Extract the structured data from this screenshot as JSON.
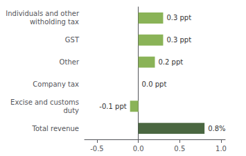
{
  "chart_data": {
    "type": "bar",
    "orientation": "horizontal",
    "categories": [
      "Total revenue",
      "Excise and customs\nduty",
      "Company tax",
      "Other",
      "GST",
      "Individuals and other\nwitholding tax"
    ],
    "values": [
      0.8,
      -0.1,
      0.0,
      0.2,
      0.3,
      0.3
    ],
    "value_labels": [
      "0.8%",
      "-0.1 ppt",
      "0.0 ppt",
      "0.2 ppt",
      "0.3 ppt",
      "0.3 ppt"
    ],
    "colors": [
      "#4a6741",
      "#8ab357",
      "#8ab357",
      "#8ab357",
      "#8ab357",
      "#8ab357"
    ],
    "xlim": [
      -0.65,
      1.05
    ],
    "xticks": [
      -0.5,
      {
        "value": 0.0,
        "label": "0.0"
      },
      0.5,
      {
        "value": 1.0,
        "label": "1.0"
      }
    ],
    "grid": false,
    "data_labels": true
  }
}
